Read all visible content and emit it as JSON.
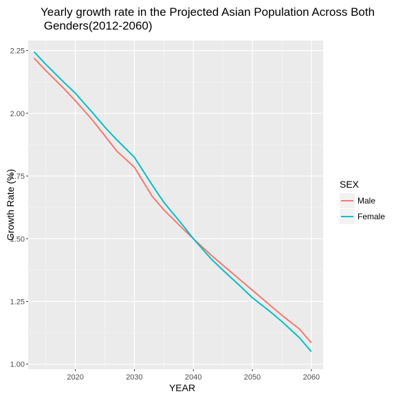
{
  "chart_data": {
    "type": "line",
    "title_line1": "Yearly growth rate in the Projected Asian Population Across Both",
    "title_line2": " Genders(2012-2060)",
    "xlabel": "YEAR",
    "ylabel": "Growth Rate (%)",
    "xlim": [
      2012,
      2062
    ],
    "ylim": [
      0.98,
      2.29
    ],
    "xticks": [
      2020,
      2030,
      2040,
      2050,
      2060
    ],
    "xtick_labels": [
      "2020",
      "2030",
      "2040",
      "2050",
      "2060"
    ],
    "yticks": [
      1.0,
      1.25,
      1.5,
      1.75,
      2.0,
      2.25
    ],
    "ytick_labels": [
      "1.00",
      "1.25",
      "1.50",
      "1.75",
      "2.00",
      "2.25"
    ],
    "grid": true,
    "legend": {
      "title": "SEX",
      "position": "right",
      "items": [
        "Male",
        "Female"
      ]
    },
    "series": [
      {
        "name": "Male",
        "color": "#F8766D",
        "x": [
          2013,
          2015,
          2018,
          2020,
          2023,
          2025,
          2027,
          2030,
          2033,
          2035,
          2038,
          2040,
          2043,
          2045,
          2048,
          2050,
          2053,
          2055,
          2058,
          2060
        ],
        "y": [
          2.22,
          2.17,
          2.1,
          2.05,
          1.97,
          1.91,
          1.85,
          1.785,
          1.67,
          1.615,
          1.545,
          1.5,
          1.435,
          1.395,
          1.335,
          1.295,
          1.235,
          1.195,
          1.14,
          1.085
        ]
      },
      {
        "name": "Female",
        "color": "#00BFC4",
        "x": [
          2013,
          2015,
          2018,
          2020,
          2023,
          2025,
          2027,
          2030,
          2033,
          2035,
          2038,
          2040,
          2043,
          2045,
          2048,
          2050,
          2053,
          2055,
          2058,
          2060
        ],
        "y": [
          2.245,
          2.195,
          2.125,
          2.08,
          2.0,
          1.945,
          1.895,
          1.825,
          1.715,
          1.645,
          1.56,
          1.5,
          1.42,
          1.375,
          1.31,
          1.265,
          1.21,
          1.17,
          1.105,
          1.05
        ]
      }
    ]
  }
}
